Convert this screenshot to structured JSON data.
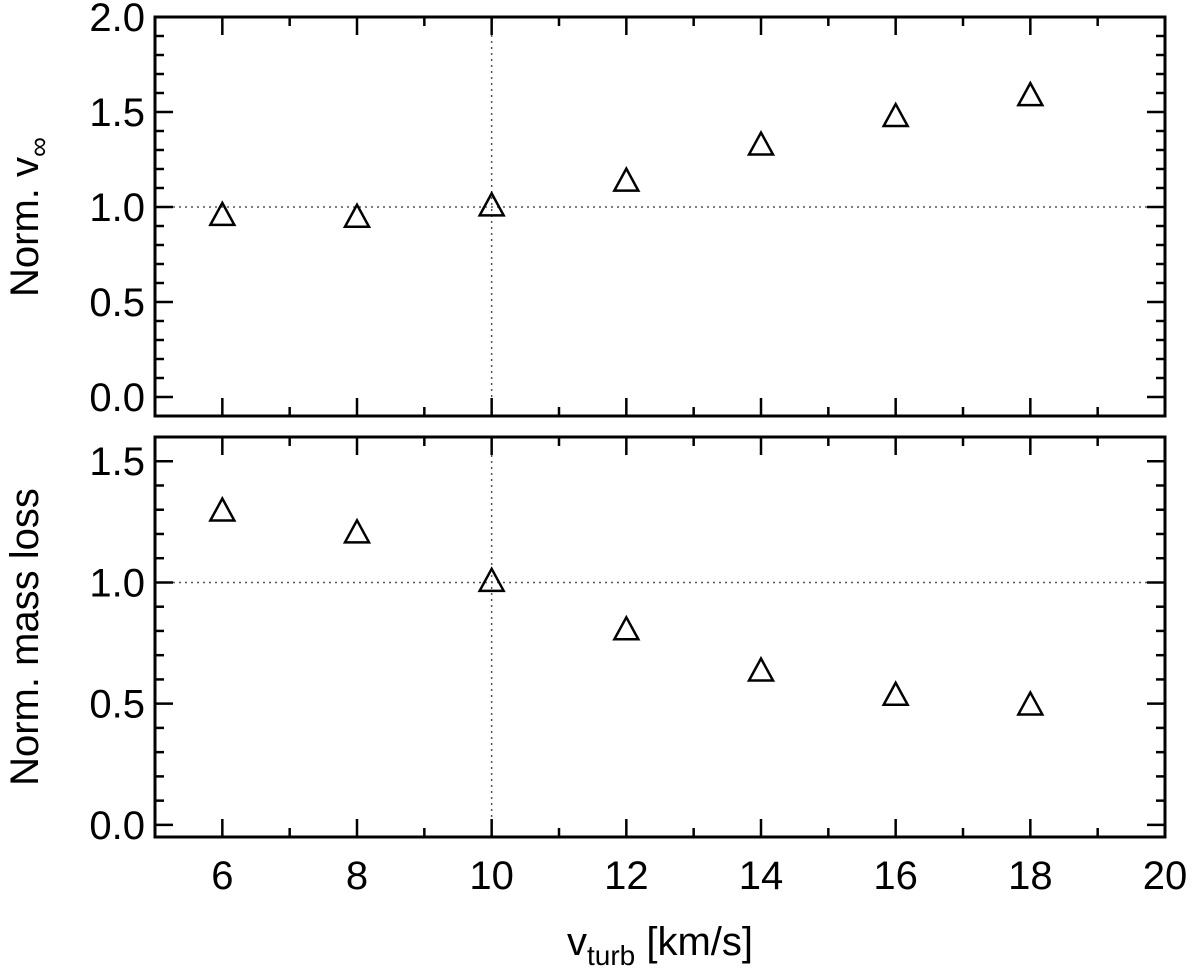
{
  "chart_data": [
    {
      "type": "scatter",
      "marker": "open-triangle",
      "xlabel": "v",
      "xlabel_sub": "turb",
      "xlabel_unit": " [km/s]",
      "ylabel": "Norm. v",
      "ylabel_sub": "∞",
      "xlim": [
        5,
        20
      ],
      "ylim": [
        -0.1,
        2.0
      ],
      "x_ticks": [
        6,
        8,
        10,
        12,
        14,
        16,
        18,
        20
      ],
      "x_tick_labels": [
        "6",
        "8",
        "10",
        "12",
        "14",
        "16",
        "18",
        "20"
      ],
      "y_ticks": [
        0.0,
        0.5,
        1.0,
        1.5,
        2.0
      ],
      "y_tick_labels": [
        "0.0",
        "0.5",
        "1.0",
        "1.5",
        "2.0"
      ],
      "reference_lines": {
        "x": 10,
        "y": 1.0
      },
      "series": [
        {
          "x": [
            6,
            8,
            10,
            12,
            14,
            16,
            18
          ],
          "y": [
            0.95,
            0.94,
            1.0,
            1.13,
            1.32,
            1.47,
            1.58
          ]
        }
      ]
    },
    {
      "type": "scatter",
      "marker": "open-triangle",
      "xlabel": "v",
      "xlabel_sub": "turb",
      "xlabel_unit": " [km/s]",
      "ylabel": "Norm. mass loss",
      "xlim": [
        5,
        20
      ],
      "ylim": [
        -0.05,
        1.6
      ],
      "x_ticks": [
        6,
        8,
        10,
        12,
        14,
        16,
        18,
        20
      ],
      "x_tick_labels": [
        "6",
        "8",
        "10",
        "12",
        "14",
        "16",
        "18",
        "20"
      ],
      "y_ticks": [
        0.0,
        0.5,
        1.0,
        1.5
      ],
      "y_tick_labels": [
        "0.0",
        "0.5",
        "1.0",
        "1.5"
      ],
      "reference_lines": {
        "x": 10,
        "y": 1.0
      },
      "series": [
        {
          "x": [
            6,
            8,
            10,
            12,
            14,
            16,
            18
          ],
          "y": [
            1.29,
            1.2,
            1.0,
            0.8,
            0.63,
            0.53,
            0.49
          ]
        }
      ]
    }
  ]
}
